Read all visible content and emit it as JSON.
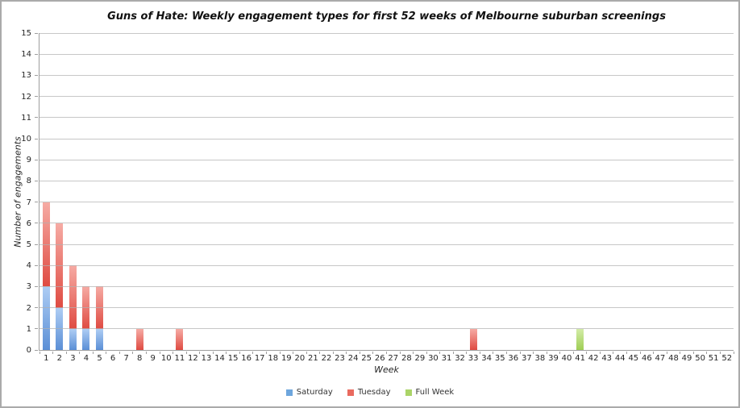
{
  "chart_data": {
    "type": "bar",
    "stacked": true,
    "title": "Guns of Hate: Weekly engagement types for first 52 weeks of Melbourne suburban screenings",
    "xlabel": "Week",
    "ylabel": "Number of engagements",
    "ylim": [
      0,
      15
    ],
    "ytick_step": 1,
    "grid": true,
    "legend_position": "bottom",
    "categories": [
      1,
      2,
      3,
      4,
      5,
      6,
      7,
      8,
      9,
      10,
      11,
      12,
      13,
      14,
      15,
      16,
      17,
      18,
      19,
      20,
      21,
      22,
      23,
      24,
      25,
      26,
      27,
      28,
      29,
      30,
      31,
      32,
      33,
      34,
      35,
      36,
      37,
      38,
      39,
      40,
      41,
      42,
      43,
      44,
      45,
      46,
      47,
      48,
      49,
      50,
      51,
      52
    ],
    "series": [
      {
        "name": "Saturday",
        "legend_color": "#6ea6dd",
        "color_top": "#aecdf4",
        "color_bottom": "#5b8fd6",
        "values": [
          3,
          2,
          1,
          1,
          1,
          0,
          0,
          0,
          0,
          0,
          0,
          0,
          0,
          0,
          0,
          0,
          0,
          0,
          0,
          0,
          0,
          0,
          0,
          0,
          0,
          0,
          0,
          0,
          0,
          0,
          0,
          0,
          0,
          0,
          0,
          0,
          0,
          0,
          0,
          0,
          0,
          0,
          0,
          0,
          0,
          0,
          0,
          0,
          0,
          0,
          0,
          0
        ]
      },
      {
        "name": "Tuesday",
        "legend_color": "#e96a5f",
        "color_top": "#f6aba4",
        "color_bottom": "#df4b42",
        "values": [
          4,
          4,
          3,
          2,
          2,
          0,
          0,
          1,
          0,
          0,
          1,
          0,
          0,
          0,
          0,
          0,
          0,
          0,
          0,
          0,
          0,
          0,
          0,
          0,
          0,
          0,
          0,
          0,
          0,
          0,
          0,
          0,
          1,
          0,
          0,
          0,
          0,
          0,
          0,
          0,
          0,
          0,
          0,
          0,
          0,
          0,
          0,
          0,
          0,
          0,
          0,
          0
        ]
      },
      {
        "name": "Full Week",
        "legend_color": "#abd468",
        "color_top": "#d3eca7",
        "color_bottom": "#9fce55",
        "values": [
          0,
          0,
          0,
          0,
          0,
          0,
          0,
          0,
          0,
          0,
          0,
          0,
          0,
          0,
          0,
          0,
          0,
          0,
          0,
          0,
          0,
          0,
          0,
          0,
          0,
          0,
          0,
          0,
          0,
          0,
          0,
          0,
          0,
          0,
          0,
          0,
          0,
          0,
          0,
          0,
          1,
          0,
          0,
          0,
          0,
          0,
          0,
          0,
          0,
          0,
          0,
          0
        ]
      }
    ]
  }
}
